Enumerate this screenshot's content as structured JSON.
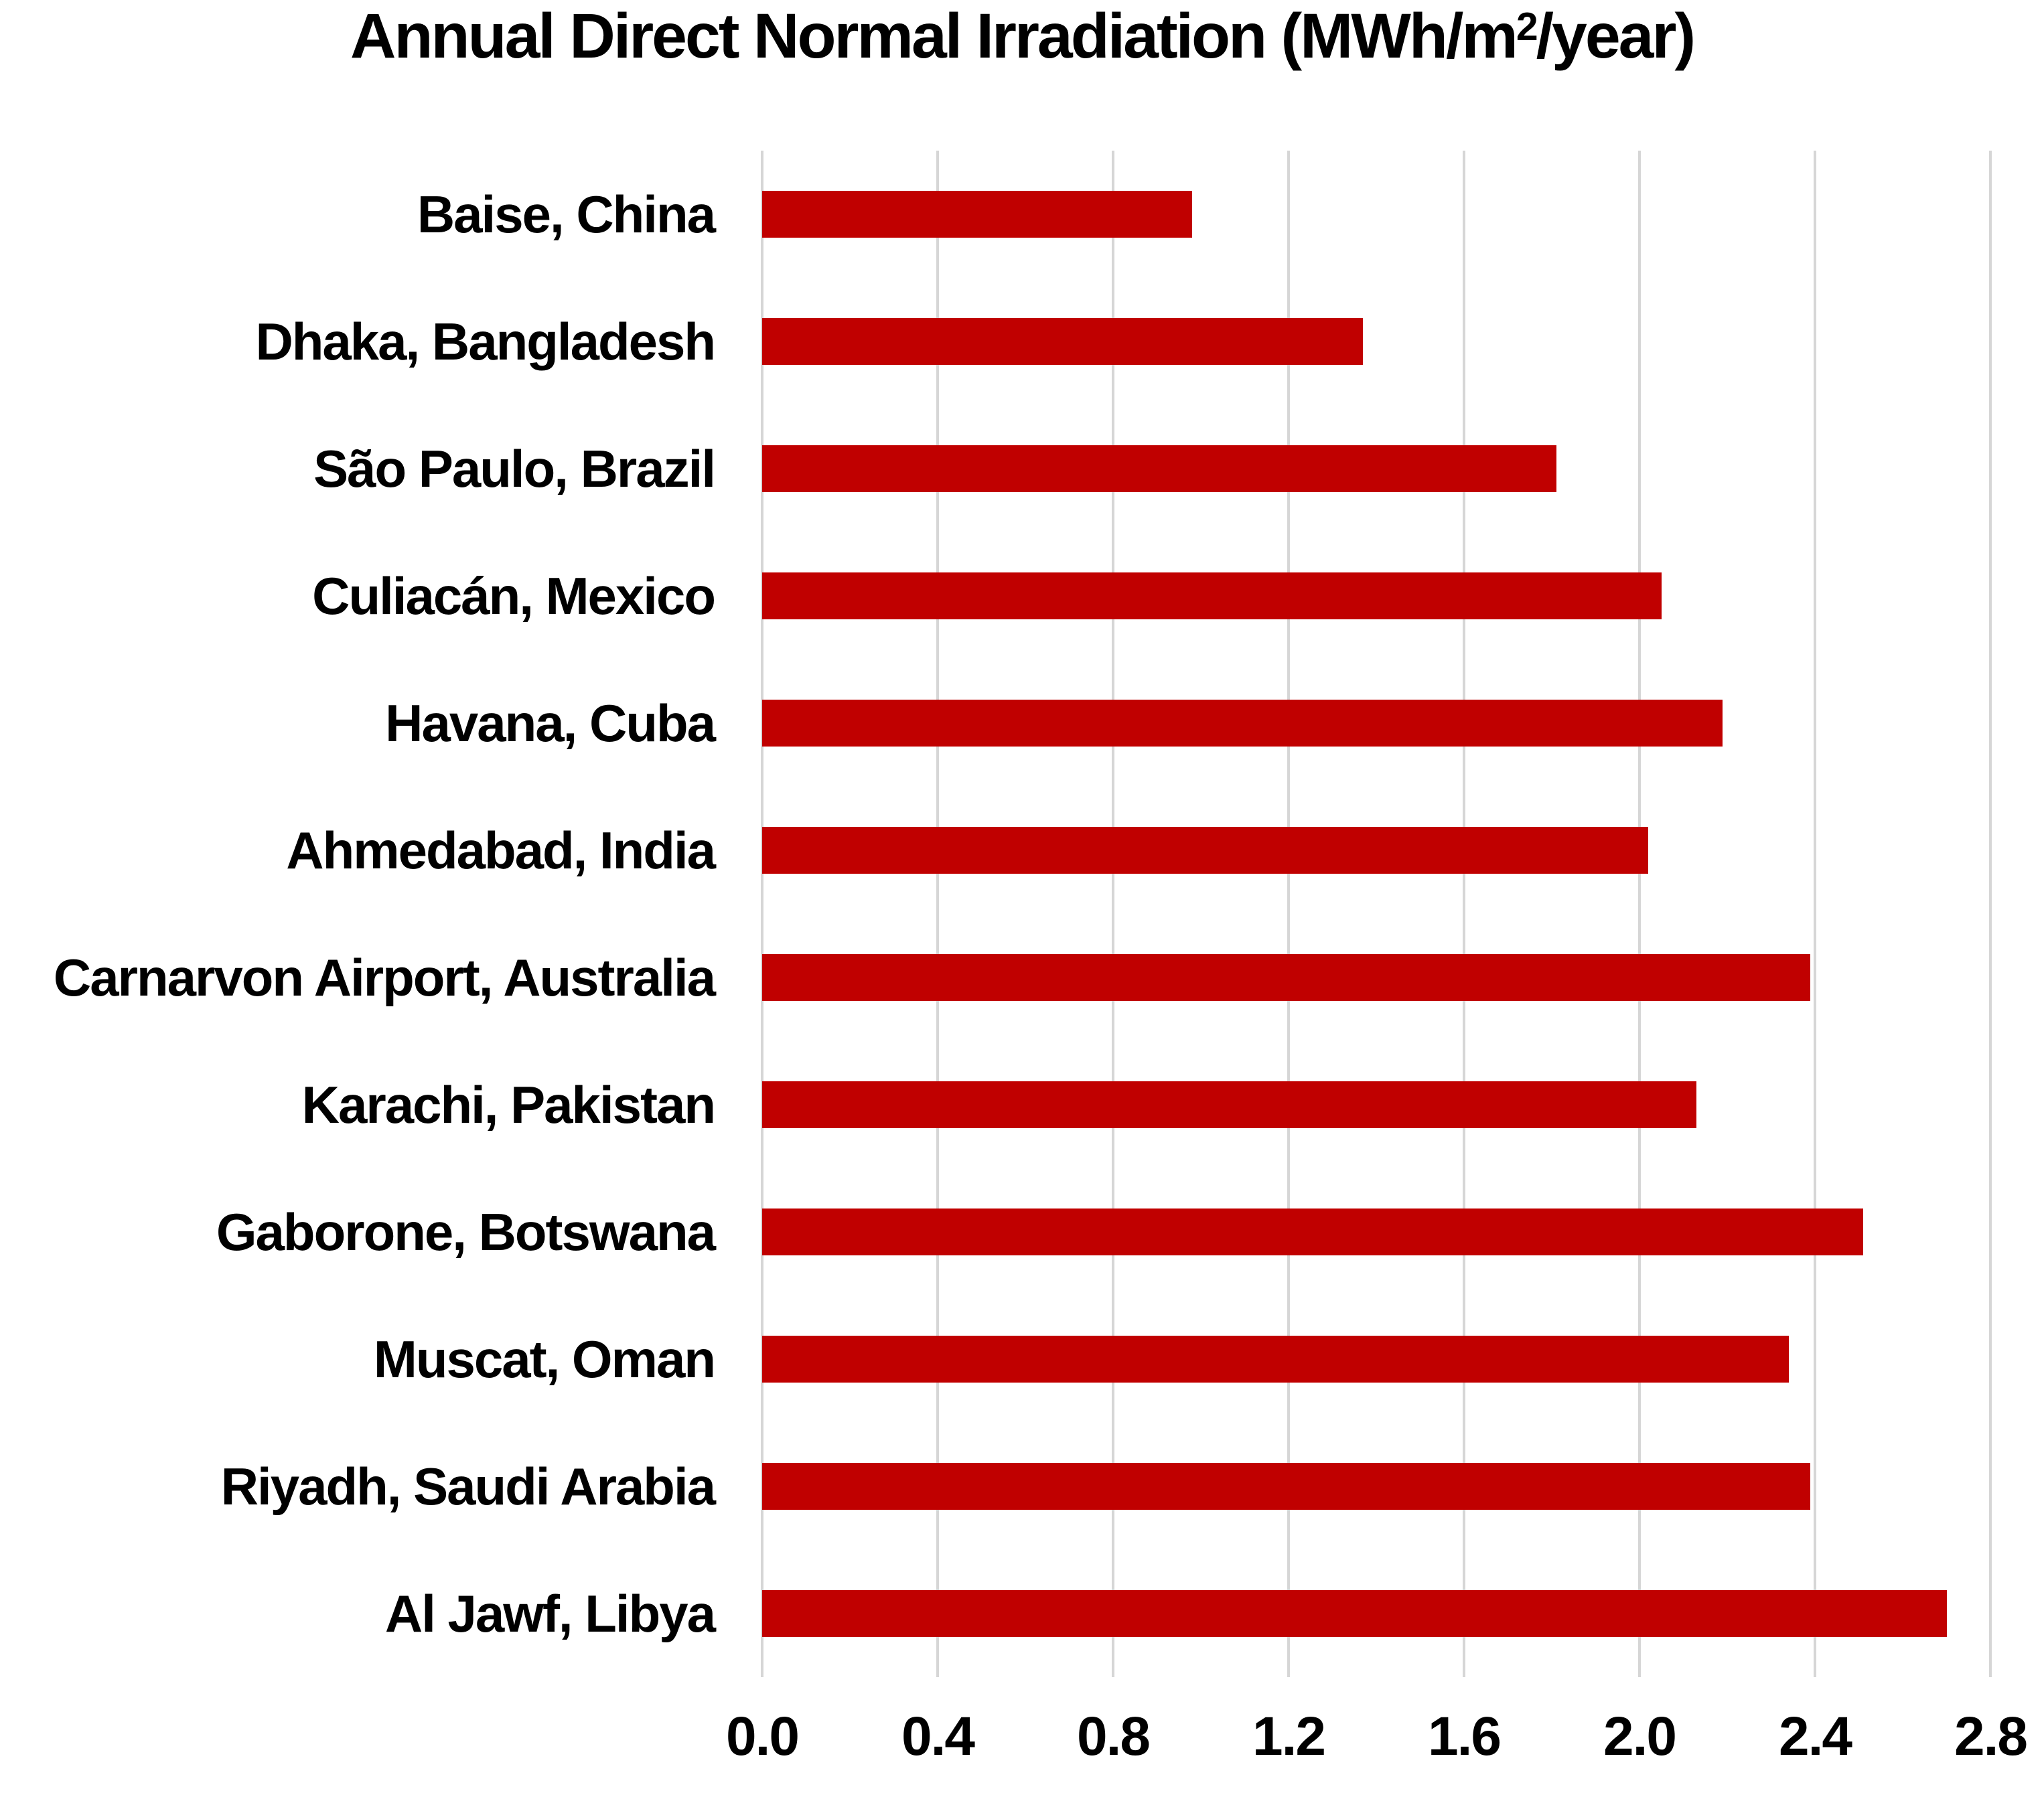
{
  "title_parts": {
    "prefix": "Annual Direct Normal Irradiation (MWh/m",
    "sup": "2",
    "suffix": "/year)"
  },
  "colors": {
    "bar": "#C00000",
    "gridline": "#D6D6D6",
    "background": "#FFFFFF",
    "text": "#000000"
  },
  "chart_data": {
    "type": "bar",
    "orientation": "horizontal",
    "title": "Annual Direct Normal Irradiation (MWh/m²/year)",
    "xlabel": "",
    "ylabel": "",
    "categories": [
      "Baise, China",
      "Dhaka, Bangladesh",
      "São Paulo, Brazil",
      "Culiacán, Mexico",
      "Havana, Cuba",
      "Ahmedabad, India",
      "Carnarvon Airport, Australia",
      "Karachi, Pakistan",
      "Gaborone, Botswana",
      "Muscat, Oman",
      "Riyadh, Saudi Arabia",
      "Al Jawf, Libya"
    ],
    "values": [
      0.98,
      1.37,
      1.81,
      2.05,
      2.19,
      2.02,
      2.39,
      2.13,
      2.51,
      2.34,
      2.39,
      2.7
    ],
    "xlim": [
      0.0,
      2.8
    ],
    "xticks": [
      0.0,
      0.4,
      0.8,
      1.2,
      1.6,
      2.0,
      2.4,
      2.8
    ],
    "xtick_labels": [
      "0.0",
      "0.4",
      "0.8",
      "1.2",
      "1.6",
      "2.0",
      "2.4",
      "2.8"
    ],
    "grid": true,
    "legend": false
  }
}
